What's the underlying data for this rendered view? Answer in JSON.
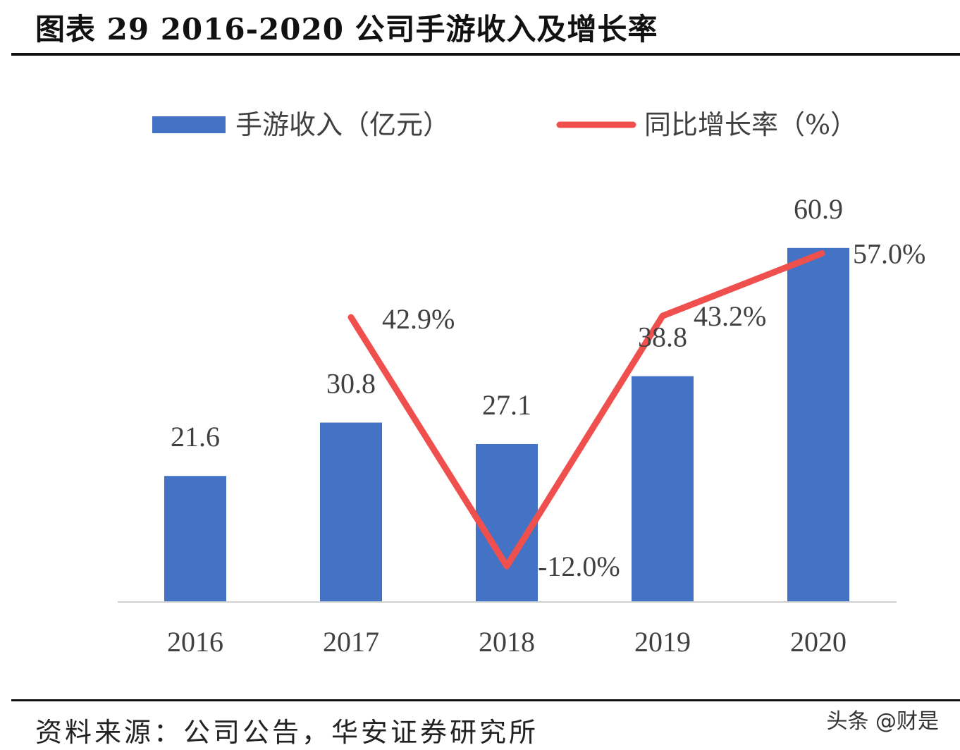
{
  "title": "图表 29 2016-2020 公司手游收入及增长率",
  "source": "资料来源：公司公告，华安证券研究所",
  "watermark": "头条 @财是",
  "chart_data": {
    "type": "bar+line",
    "categories": [
      "2016",
      "2017",
      "2018",
      "2019",
      "2020"
    ],
    "series": [
      {
        "name": "手游收入（亿元）",
        "type": "bar",
        "color": "#4472C4",
        "values": [
          21.6,
          30.8,
          27.1,
          38.8,
          60.9
        ],
        "labels": [
          "21.6",
          "30.8",
          "27.1",
          "38.8",
          "60.9"
        ]
      },
      {
        "name": "同比增长率（%）",
        "type": "line",
        "color": "#F0504D",
        "values": [
          null,
          42.9,
          -12.0,
          43.2,
          57.0
        ],
        "labels": [
          "",
          "42.9%",
          "-12.0%",
          "43.2%",
          "57.0%"
        ]
      }
    ],
    "legend": "top",
    "grid": false
  }
}
